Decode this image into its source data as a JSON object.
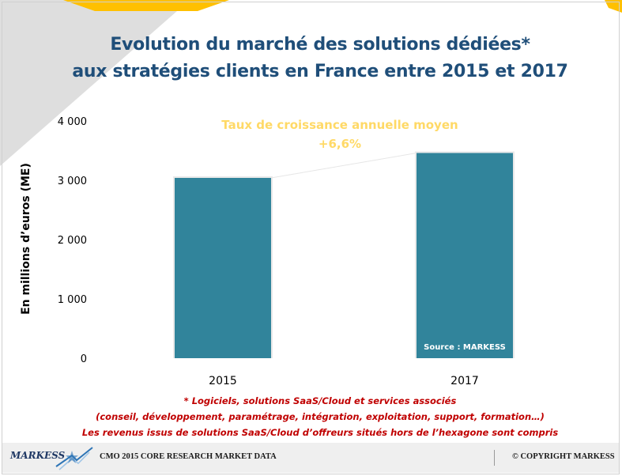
{
  "title": {
    "line1": "Evolution du marché des solutions dédiées*",
    "line2": "aux stratégies clients en France entre 2015 et 2017"
  },
  "annotation": {
    "line1": "Taux de croissance annuelle moyen",
    "line2": "+6,6%"
  },
  "source_label": "Source : MARKESS",
  "footnotes": [
    "* Logiciels, solutions SaaS/Cloud et services associés",
    "(conseil, développement, paramétrage, intégration, exploitation, support, formation…)",
    "Les revenus issus de solutions SaaS/Cloud d’offreurs situés hors de l’hexagone sont compris"
  ],
  "footer": {
    "logo": "MARKESS",
    "text": "CMO 2015 CORE RESEARCH MARKET DATA",
    "copyright": "© COPYRIGHT MARKESS"
  },
  "colors": {
    "bar": "#31849b",
    "title": "#1f4e79",
    "annotation": "#ffd966",
    "footnote": "#c00000"
  },
  "chart_data": {
    "type": "bar",
    "categories": [
      "2015",
      "2017"
    ],
    "values": [
      3040,
      3460
    ],
    "ylabel": "En millions d’euros (ME)",
    "ylim": [
      0,
      4000
    ],
    "yticks": [
      0,
      1000,
      2000,
      3000,
      4000
    ],
    "ytick_labels": [
      "0",
      "1 000",
      "2 000",
      "3 000",
      "4 000"
    ],
    "grid": false,
    "legend": "none"
  }
}
